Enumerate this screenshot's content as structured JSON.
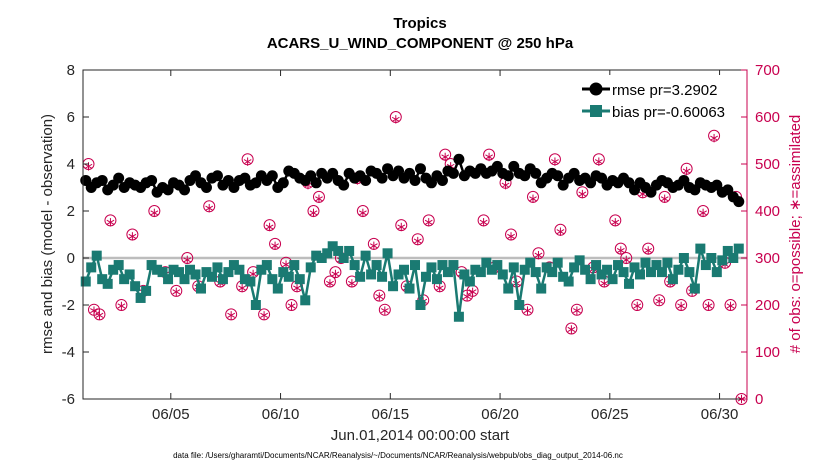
{
  "chart_data": {
    "type": "line",
    "title": "Tropics",
    "subtitle": "ACARS_U_WIND_COMPONENT @ 250 hPa",
    "xlabel": "Jun.01,2014 00:00:00 start",
    "ylabel": "rmse and bias (model - observation)",
    "ylabel_right": "# of obs: o=possible; ∗=assimilated",
    "footnote": "data file: /Users/gharamti/Documents/NCAR/Reanalysis/~/Documents/NCAR/Reanalysis/webpub/obs_diag_output_2014-06.nc",
    "xlim": [
      1.0,
      31.25
    ],
    "ylim": [
      -6,
      8
    ],
    "ylim_right": [
      0,
      700
    ],
    "x_ticks": [
      5,
      10,
      15,
      20,
      25,
      30
    ],
    "x_tick_labels": [
      "06/05",
      "06/10",
      "06/15",
      "06/20",
      "06/25",
      "06/30"
    ],
    "y_ticks": [
      -6,
      -4,
      -2,
      0,
      2,
      4,
      6,
      8
    ],
    "y_tick_labels": [
      "-6",
      "-4",
      "-2",
      "0",
      "2",
      "4",
      "6",
      "8"
    ],
    "y_ticks_right": [
      0,
      100,
      200,
      300,
      400,
      500,
      600,
      700
    ],
    "y_tick_labels_right": [
      "0",
      "100",
      "200",
      "300",
      "400",
      "500",
      "600",
      "700"
    ],
    "zero_line": 0,
    "legend_position": "top-right",
    "colors": {
      "rmse": "#000000",
      "bias": "#1a7a72",
      "obs": "#c8004f",
      "zero": "#bdbdbd",
      "axis": "#262626"
    },
    "series": [
      {
        "name": "rmse pr=3.2902",
        "marker": "circle",
        "x": [
          1.125,
          1.375,
          1.625,
          1.875,
          2.125,
          2.375,
          2.625,
          2.875,
          3.125,
          3.375,
          3.625,
          3.875,
          4.125,
          4.375,
          4.625,
          4.875,
          5.125,
          5.375,
          5.625,
          5.875,
          6.125,
          6.375,
          6.625,
          6.875,
          7.125,
          7.375,
          7.625,
          7.875,
          8.125,
          8.375,
          8.625,
          8.875,
          9.125,
          9.375,
          9.625,
          9.875,
          10.125,
          10.375,
          10.625,
          10.875,
          11.125,
          11.375,
          11.625,
          11.875,
          12.125,
          12.375,
          12.625,
          12.875,
          13.125,
          13.375,
          13.625,
          13.875,
          14.125,
          14.375,
          14.625,
          14.875,
          15.125,
          15.375,
          15.625,
          15.875,
          16.125,
          16.375,
          16.625,
          16.875,
          17.125,
          17.375,
          17.625,
          17.875,
          18.125,
          18.375,
          18.625,
          18.875,
          19.125,
          19.375,
          19.625,
          19.875,
          20.125,
          20.375,
          20.625,
          20.875,
          21.125,
          21.375,
          21.625,
          21.875,
          22.125,
          22.375,
          22.625,
          22.875,
          23.125,
          23.375,
          23.625,
          23.875,
          24.125,
          24.375,
          24.625,
          24.875,
          25.125,
          25.375,
          25.625,
          25.875,
          26.125,
          26.375,
          26.625,
          26.875,
          27.125,
          27.375,
          27.625,
          27.875,
          28.125,
          28.375,
          28.625,
          28.875,
          29.125,
          29.375,
          29.625,
          29.875,
          30.125,
          30.375,
          30.625,
          30.875
        ],
        "values": [
          3.3,
          3.0,
          3.2,
          3.3,
          2.9,
          3.1,
          3.4,
          3.0,
          3.2,
          3.1,
          3.0,
          3.2,
          3.3,
          2.8,
          3.0,
          2.9,
          3.2,
          3.1,
          2.9,
          3.3,
          3.5,
          3.2,
          3.0,
          3.4,
          3.5,
          3.1,
          3.3,
          3.0,
          3.3,
          3.4,
          3.1,
          3.2,
          3.5,
          3.3,
          3.5,
          3.0,
          3.2,
          3.7,
          3.6,
          3.4,
          3.3,
          3.5,
          3.2,
          3.6,
          3.4,
          3.6,
          3.3,
          3.1,
          3.6,
          3.4,
          3.5,
          3.3,
          3.7,
          3.6,
          3.4,
          3.8,
          3.5,
          3.7,
          3.4,
          3.6,
          3.3,
          3.8,
          3.4,
          3.2,
          3.5,
          3.3,
          3.7,
          3.6,
          4.2,
          3.5,
          3.7,
          3.6,
          3.8,
          3.6,
          3.7,
          3.9,
          3.6,
          3.5,
          3.9,
          3.6,
          3.5,
          3.8,
          3.6,
          3.2,
          3.4,
          3.6,
          3.5,
          3.1,
          3.4,
          3.6,
          3.3,
          3.4,
          3.2,
          3.5,
          3.4,
          3.1,
          3.3,
          3.2,
          3.4,
          3.2,
          2.9,
          3.2,
          3.0,
          2.8,
          3.1,
          3.3,
          3.2,
          3.0,
          3.1,
          3.3,
          3.0,
          2.9,
          3.2,
          3.1,
          3.0,
          3.1,
          2.8,
          2.9,
          2.6,
          2.4
        ]
      },
      {
        "name": "bias pr=-0.60063",
        "marker": "square",
        "x": [
          1.125,
          1.375,
          1.625,
          1.875,
          2.125,
          2.375,
          2.625,
          2.875,
          3.125,
          3.375,
          3.625,
          3.875,
          4.125,
          4.375,
          4.625,
          4.875,
          5.125,
          5.375,
          5.625,
          5.875,
          6.125,
          6.375,
          6.625,
          6.875,
          7.125,
          7.375,
          7.625,
          7.875,
          8.125,
          8.375,
          8.625,
          8.875,
          9.125,
          9.375,
          9.625,
          9.875,
          10.125,
          10.375,
          10.625,
          10.875,
          11.125,
          11.375,
          11.625,
          11.875,
          12.125,
          12.375,
          12.625,
          12.875,
          13.125,
          13.375,
          13.625,
          13.875,
          14.125,
          14.375,
          14.625,
          14.875,
          15.125,
          15.375,
          15.625,
          15.875,
          16.125,
          16.375,
          16.625,
          16.875,
          17.125,
          17.375,
          17.625,
          17.875,
          18.125,
          18.375,
          18.625,
          18.875,
          19.125,
          19.375,
          19.625,
          19.875,
          20.125,
          20.375,
          20.625,
          20.875,
          21.125,
          21.375,
          21.625,
          21.875,
          22.125,
          22.375,
          22.625,
          22.875,
          23.125,
          23.375,
          23.625,
          23.875,
          24.125,
          24.375,
          24.625,
          24.875,
          25.125,
          25.375,
          25.625,
          25.875,
          26.125,
          26.375,
          26.625,
          26.875,
          27.125,
          27.375,
          27.625,
          27.875,
          28.125,
          28.375,
          28.625,
          28.875,
          29.125,
          29.375,
          29.625,
          29.875,
          30.125,
          30.375,
          30.625,
          30.875
        ],
        "values": [
          -1.0,
          -0.4,
          0.1,
          -0.9,
          -1.1,
          -0.5,
          -0.3,
          -0.9,
          -0.7,
          -1.2,
          -1.7,
          -1.4,
          -0.3,
          -0.5,
          -0.6,
          -0.9,
          -0.5,
          -0.6,
          -0.9,
          -0.5,
          -0.7,
          -1.3,
          -0.6,
          -0.8,
          -0.4,
          -0.9,
          -0.6,
          -0.3,
          -0.5,
          -0.9,
          -1.0,
          -2.0,
          -0.5,
          -0.3,
          -0.9,
          -1.3,
          -0.6,
          -0.8,
          -0.3,
          -0.9,
          -1.8,
          -0.4,
          0.1,
          0.0,
          0.2,
          0.5,
          0.3,
          0.0,
          0.3,
          -0.3,
          -0.8,
          0.1,
          -0.7,
          -0.3,
          -0.8,
          0.2,
          -1.2,
          -0.7,
          -0.5,
          -1.3,
          -0.3,
          -2.0,
          -0.8,
          -0.4,
          -0.9,
          -0.3,
          -0.6,
          -0.3,
          -2.5,
          -0.7,
          -1.0,
          -0.5,
          -0.6,
          -0.2,
          -0.5,
          -0.3,
          -0.7,
          -1.3,
          -0.4,
          -2.0,
          -0.5,
          -0.2,
          -0.6,
          -1.3,
          -0.4,
          -0.6,
          -0.2,
          -0.8,
          -1.0,
          -0.4,
          -0.1,
          -0.5,
          -0.9,
          -0.3,
          -0.7,
          -0.5,
          -0.9,
          -0.3,
          -0.6,
          -1.1,
          -0.4,
          -0.7,
          -0.2,
          -0.6,
          -0.3,
          -0.6,
          -0.2,
          -0.9,
          -0.5,
          0.0,
          -0.6,
          -1.3,
          0.4,
          -0.3,
          0.0,
          -0.6,
          -0.1,
          0.3,
          0.0,
          0.4
        ]
      },
      {
        "name": "# of obs possible",
        "marker": "circle-open",
        "axis": "right",
        "x": [
          1.25,
          1.5,
          1.75,
          2.25,
          2.75,
          3.25,
          3.75,
          4.25,
          4.75,
          5.25,
          5.75,
          6.25,
          6.75,
          7.25,
          7.75,
          8.25,
          8.5,
          8.75,
          9.25,
          9.5,
          9.75,
          10.25,
          10.5,
          10.75,
          11.25,
          11.5,
          11.75,
          12.25,
          12.5,
          12.75,
          13.25,
          13.5,
          13.75,
          14.25,
          14.5,
          14.75,
          15.25,
          15.5,
          15.75,
          16.25,
          16.5,
          16.75,
          17.25,
          17.5,
          17.75,
          18.25,
          18.5,
          18.75,
          19.25,
          19.5,
          19.75,
          20.25,
          20.5,
          20.75,
          21.25,
          21.5,
          21.75,
          22.25,
          22.5,
          22.75,
          23.25,
          23.5,
          23.75,
          24.25,
          24.5,
          24.75,
          25.25,
          25.5,
          25.75,
          26.25,
          26.5,
          26.75,
          27.25,
          27.5,
          27.75,
          28.25,
          28.5,
          28.75,
          29.25,
          29.5,
          29.75,
          30.25,
          30.5,
          30.75,
          31.0
        ],
        "values": [
          500,
          190,
          180,
          380,
          200,
          350,
          230,
          400,
          270,
          230,
          300,
          240,
          410,
          250,
          180,
          240,
          510,
          270,
          180,
          370,
          330,
          290,
          200,
          240,
          460,
          400,
          430,
          250,
          270,
          300,
          250,
          470,
          400,
          330,
          220,
          190,
          600,
          370,
          240,
          340,
          210,
          380,
          240,
          520,
          500,
          270,
          220,
          230,
          380,
          520,
          280,
          460,
          350,
          250,
          190,
          430,
          310,
          280,
          510,
          360,
          150,
          190,
          440,
          280,
          510,
          250,
          380,
          320,
          300,
          200,
          440,
          320,
          210,
          430,
          250,
          200,
          490,
          230,
          400,
          200,
          560,
          290,
          200,
          430,
          0
        ]
      },
      {
        "name": "# of obs assimilated",
        "marker": "asterisk",
        "axis": "right",
        "x": [
          1.25,
          1.5,
          1.75,
          2.25,
          2.75,
          3.25,
          3.75,
          4.25,
          4.75,
          5.25,
          5.75,
          6.25,
          6.75,
          7.25,
          7.75,
          8.25,
          8.5,
          8.75,
          9.25,
          9.5,
          9.75,
          10.25,
          10.5,
          10.75,
          11.25,
          11.5,
          11.75,
          12.25,
          12.5,
          12.75,
          13.25,
          13.5,
          13.75,
          14.25,
          14.5,
          14.75,
          15.25,
          15.5,
          15.75,
          16.25,
          16.5,
          16.75,
          17.25,
          17.5,
          17.75,
          18.25,
          18.5,
          18.75,
          19.25,
          19.5,
          19.75,
          20.25,
          20.5,
          20.75,
          21.25,
          21.5,
          21.75,
          22.25,
          22.5,
          22.75,
          23.25,
          23.5,
          23.75,
          24.25,
          24.5,
          24.75,
          25.25,
          25.5,
          25.75,
          26.25,
          26.5,
          26.75,
          27.25,
          27.5,
          27.75,
          28.25,
          28.5,
          28.75,
          29.25,
          29.5,
          29.75,
          30.25,
          30.5,
          30.75,
          31.0
        ],
        "values": [
          495,
          188,
          178,
          376,
          198,
          346,
          228,
          396,
          266,
          228,
          296,
          238,
          406,
          246,
          178,
          236,
          505,
          266,
          178,
          366,
          326,
          286,
          198,
          236,
          455,
          396,
          426,
          246,
          266,
          296,
          246,
          465,
          396,
          326,
          218,
          188,
          595,
          366,
          236,
          336,
          208,
          376,
          236,
          515,
          495,
          266,
          218,
          228,
          376,
          515,
          276,
          455,
          346,
          246,
          188,
          426,
          306,
          276,
          505,
          356,
          148,
          188,
          436,
          276,
          505,
          246,
          376,
          316,
          296,
          198,
          436,
          316,
          208,
          426,
          246,
          198,
          485,
          228,
          396,
          198,
          555,
          286,
          198,
          426,
          0
        ]
      }
    ]
  }
}
